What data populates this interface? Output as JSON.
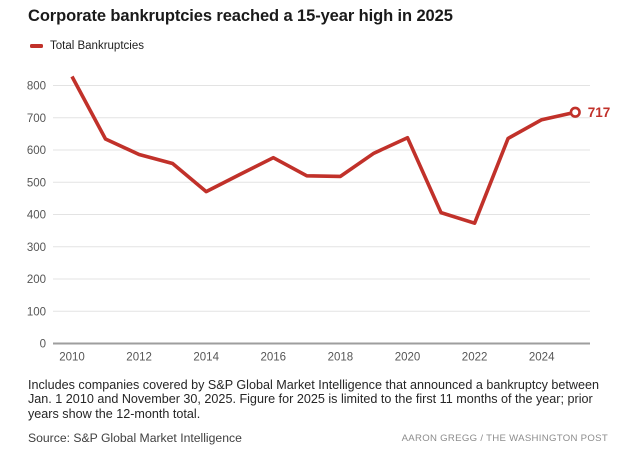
{
  "title": "Corporate bankruptcies reached a 15-year high in 2025",
  "legend": {
    "label": "Total Bankruptcies"
  },
  "chart_data": {
    "type": "line",
    "title": "Corporate bankruptcies reached a 15-year high in 2025",
    "xlabel": "",
    "ylabel": "",
    "series": [
      {
        "name": "Total Bankruptcies",
        "x": [
          2010,
          2011,
          2012,
          2013,
          2014,
          2015,
          2016,
          2017,
          2018,
          2019,
          2020,
          2021,
          2022,
          2023,
          2024,
          2025
        ],
        "values": [
          828,
          634,
          586,
          558,
          471,
          524,
          576,
          520,
          518,
          590,
          638,
          406,
          373,
          636,
          694,
          717
        ]
      }
    ],
    "ylim": [
      0,
      800
    ],
    "ytick_interval": 100,
    "xticks": [
      2010,
      2012,
      2014,
      2016,
      2018,
      2020,
      2022,
      2024
    ],
    "grid": true,
    "legend_position": "top-left",
    "end_label": "717",
    "end_marker": "open-circle"
  },
  "colors": {
    "line": "#c1312a",
    "end_label": "#c1312a",
    "grid": "#e3e3e3",
    "axis": "#9e9e9e",
    "tick_text": "#565656",
    "marker_fill": "#ffffff"
  },
  "footnote": "Includes companies covered by S&P Global Market Intelligence that announced a bankruptcy between Jan. 1 2010 and November 30, 2025. Figure for 2025 is limited to the first 11 months of the year; prior years show the 12-month total.",
  "source": "Source: S&P Global Market Intelligence",
  "credit": "AARON GREGG / THE WASHINGTON POST"
}
